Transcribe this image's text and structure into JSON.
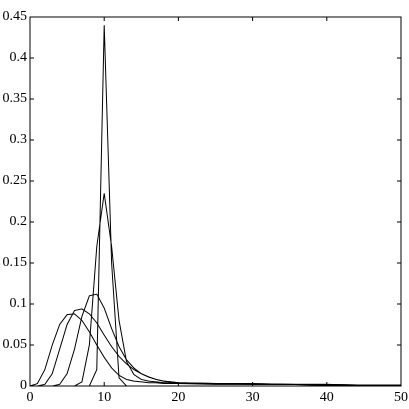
{
  "chart_data": {
    "type": "line",
    "x": [
      0,
      1,
      2,
      3,
      4,
      5,
      6,
      7,
      8,
      9,
      10,
      11,
      12,
      13,
      14,
      15,
      16,
      17,
      18,
      19,
      20,
      25,
      30,
      35,
      40,
      45,
      50
    ],
    "series": [
      {
        "color": "#000000",
        "values": [
          0,
          0,
          0,
          0,
          0,
          0,
          0,
          0,
          0,
          0.02,
          0.44,
          0.15,
          0.01,
          0,
          0,
          0,
          0,
          0,
          0,
          0,
          0,
          0,
          0,
          0,
          0,
          0,
          0
        ]
      },
      {
        "color": "#000000",
        "values": [
          0,
          0,
          0,
          0,
          0,
          0,
          0,
          0.005,
          0.05,
          0.17,
          0.235,
          0.17,
          0.08,
          0.03,
          0.014,
          0.008,
          0.006,
          0.005,
          0.004,
          0.004,
          0.003,
          0.003,
          0.002,
          0.002,
          0.001,
          0.001,
          0.001
        ]
      },
      {
        "color": "#000000",
        "values": [
          0,
          0,
          0,
          0,
          0.002,
          0.015,
          0.045,
          0.085,
          0.11,
          0.112,
          0.095,
          0.07,
          0.048,
          0.032,
          0.022,
          0.015,
          0.011,
          0.008,
          0.006,
          0.005,
          0.004,
          0.003,
          0.003,
          0.002,
          0.002,
          0.001,
          0.001
        ]
      },
      {
        "color": "#000000",
        "values": [
          0,
          0,
          0.002,
          0.015,
          0.045,
          0.075,
          0.092,
          0.094,
          0.088,
          0.077,
          0.062,
          0.048,
          0.036,
          0.027,
          0.02,
          0.015,
          0.011,
          0.008,
          0.006,
          0.005,
          0.004,
          0.003,
          0.003,
          0.002,
          0.002,
          0.001,
          0.001
        ]
      },
      {
        "color": "#000000",
        "values": [
          0,
          0.003,
          0.02,
          0.05,
          0.075,
          0.087,
          0.088,
          0.08,
          0.066,
          0.05,
          0.035,
          0.022,
          0.013,
          0.008,
          0.006,
          0.005,
          0.004,
          0.004,
          0.003,
          0.003,
          0.003,
          0.002,
          0.002,
          0.002,
          0.001,
          0.001,
          0.001
        ]
      }
    ],
    "xlim": [
      0,
      50
    ],
    "xticks": [
      0,
      10,
      20,
      30,
      40,
      50
    ],
    "ylim": [
      0,
      0.45
    ],
    "yticks": [
      0,
      0.05,
      0.1,
      0.15,
      0.2,
      0.25,
      0.3,
      0.35,
      0.4,
      0.45
    ],
    "grid": false
  }
}
